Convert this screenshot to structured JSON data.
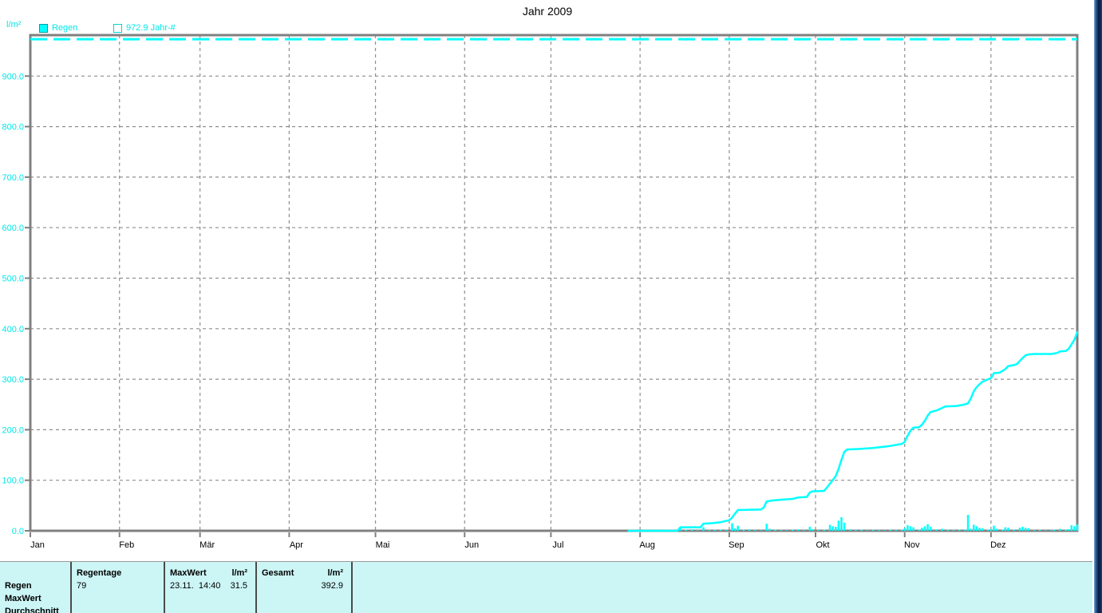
{
  "title": "Jahr 2009",
  "y_axis_unit": "l/m²",
  "legend": {
    "items": [
      {
        "label": "Regen",
        "swatch": "filled"
      },
      {
        "label": "972.9 Jahr-#",
        "swatch": "outline"
      }
    ]
  },
  "chart_data": {
    "type": "line",
    "title": "Jahr 2009",
    "ylabel": "l/m²",
    "ylim": [
      0,
      982
    ],
    "grid": true,
    "legend_position": "top-left",
    "y_ticks": [
      0,
      100,
      200,
      300,
      400,
      500,
      600,
      700,
      800,
      900
    ],
    "y_tick_labels": [
      "0.0",
      "100.0",
      "200.0",
      "300.0",
      "400.0",
      "500.0",
      "600.0",
      "700.0",
      "800.0",
      "900.0"
    ],
    "x_tick_labels": [
      "Jan",
      "Feb",
      "Mär",
      "Apr",
      "Mai",
      "Jun",
      "Jul",
      "Aug",
      "Sep",
      "Okt",
      "Nov",
      "Dez"
    ],
    "month_start_days": [
      1,
      32,
      60,
      91,
      121,
      152,
      182,
      213,
      244,
      274,
      305,
      335
    ],
    "days_in_year": 365,
    "reference_line": {
      "value": 972.9,
      "label": "972.9 Jahr-#",
      "style": "dashed"
    },
    "series": {
      "cumulative_line": {
        "unit": "l/m²",
        "end_value": 392.9,
        "points": [
          [
            209,
            0
          ],
          [
            226,
            0
          ],
          [
            227,
            7
          ],
          [
            234,
            7
          ],
          [
            235,
            14
          ],
          [
            238,
            15
          ],
          [
            241,
            17
          ],
          [
            244,
            21
          ],
          [
            245,
            26
          ],
          [
            246,
            34
          ],
          [
            247,
            41
          ],
          [
            255,
            42
          ],
          [
            256,
            46
          ],
          [
            257,
            58
          ],
          [
            259,
            60
          ],
          [
            263,
            62
          ],
          [
            266,
            63
          ],
          [
            268,
            66
          ],
          [
            271,
            67
          ],
          [
            272,
            76
          ],
          [
            273,
            78
          ],
          [
            277,
            79
          ],
          [
            279,
            93
          ],
          [
            281,
            108
          ],
          [
            282,
            122
          ],
          [
            283,
            140
          ],
          [
            284,
            156
          ],
          [
            285,
            161
          ],
          [
            289,
            162
          ],
          [
            294,
            164
          ],
          [
            300,
            168
          ],
          [
            304,
            172
          ],
          [
            305,
            176
          ],
          [
            306,
            188
          ],
          [
            307,
            198
          ],
          [
            308,
            204
          ],
          [
            310,
            205
          ],
          [
            311,
            210
          ],
          [
            312,
            218
          ],
          [
            313,
            228
          ],
          [
            314,
            235
          ],
          [
            316,
            238
          ],
          [
            318,
            243
          ],
          [
            319,
            246
          ],
          [
            323,
            247
          ],
          [
            325,
            249
          ],
          [
            327,
            252
          ],
          [
            328,
            262
          ],
          [
            329,
            276
          ],
          [
            330,
            284
          ],
          [
            331,
            290
          ],
          [
            332,
            295
          ],
          [
            334,
            300
          ],
          [
            335,
            302
          ],
          [
            336,
            312
          ],
          [
            338,
            313
          ],
          [
            340,
            320
          ],
          [
            341,
            326
          ],
          [
            343,
            328
          ],
          [
            344,
            330
          ],
          [
            345,
            336
          ],
          [
            346,
            342
          ],
          [
            347,
            347
          ],
          [
            348,
            349
          ],
          [
            350,
            350
          ],
          [
            356,
            350
          ],
          [
            357,
            351
          ],
          [
            358,
            352
          ],
          [
            359,
            355
          ],
          [
            361,
            356
          ],
          [
            362,
            360
          ],
          [
            363,
            369
          ],
          [
            364,
            378
          ],
          [
            365,
            392.9
          ]
        ]
      },
      "daily_bars": {
        "unit": "l/m²",
        "max_value": 31.5,
        "points": [
          [
            220,
            1
          ],
          [
            222,
            2
          ],
          [
            225,
            1.5
          ],
          [
            227,
            6
          ],
          [
            229,
            2
          ],
          [
            231,
            3
          ],
          [
            233,
            1
          ],
          [
            235,
            7
          ],
          [
            237,
            1.5
          ],
          [
            239,
            2
          ],
          [
            241,
            2
          ],
          [
            243,
            1.5
          ],
          [
            245,
            15
          ],
          [
            246,
            5
          ],
          [
            247,
            10
          ],
          [
            249,
            2
          ],
          [
            251,
            3
          ],
          [
            253,
            1.5
          ],
          [
            255,
            1
          ],
          [
            257,
            14
          ],
          [
            258,
            4
          ],
          [
            260,
            2
          ],
          [
            262,
            1.5
          ],
          [
            264,
            1
          ],
          [
            266,
            2
          ],
          [
            268,
            3
          ],
          [
            270,
            1
          ],
          [
            272,
            8
          ],
          [
            273,
            3
          ],
          [
            275,
            1.5
          ],
          [
            277,
            2
          ],
          [
            279,
            12
          ],
          [
            280,
            9
          ],
          [
            281,
            8
          ],
          [
            282,
            20
          ],
          [
            283,
            27
          ],
          [
            284,
            16
          ],
          [
            286,
            3
          ],
          [
            288,
            1.5
          ],
          [
            290,
            2
          ],
          [
            292,
            1
          ],
          [
            294,
            2
          ],
          [
            296,
            1.5
          ],
          [
            298,
            1
          ],
          [
            300,
            2
          ],
          [
            302,
            1.5
          ],
          [
            304,
            2
          ],
          [
            305,
            5
          ],
          [
            306,
            11
          ],
          [
            307,
            9
          ],
          [
            308,
            7
          ],
          [
            310,
            2
          ],
          [
            311,
            6
          ],
          [
            312,
            9
          ],
          [
            313,
            13
          ],
          [
            314,
            8
          ],
          [
            316,
            3
          ],
          [
            318,
            4
          ],
          [
            320,
            2
          ],
          [
            322,
            1.5
          ],
          [
            324,
            2
          ],
          [
            326,
            2
          ],
          [
            327,
            31.5
          ],
          [
            328,
            4
          ],
          [
            329,
            12
          ],
          [
            330,
            9
          ],
          [
            331,
            6
          ],
          [
            332,
            5
          ],
          [
            334,
            2
          ],
          [
            335,
            3
          ],
          [
            336,
            10
          ],
          [
            337,
            4
          ],
          [
            339,
            2
          ],
          [
            340,
            7
          ],
          [
            341,
            6
          ],
          [
            343,
            2
          ],
          [
            345,
            6
          ],
          [
            346,
            8
          ],
          [
            347,
            6
          ],
          [
            348,
            5
          ],
          [
            350,
            1.5
          ],
          [
            352,
            2
          ],
          [
            354,
            1
          ],
          [
            356,
            1.5
          ],
          [
            357,
            2
          ],
          [
            359,
            4
          ],
          [
            361,
            2
          ],
          [
            362,
            3
          ],
          [
            363,
            11
          ],
          [
            364,
            9
          ],
          [
            365,
            13
          ]
        ]
      }
    }
  },
  "summary_table": {
    "row_labels": [
      "Regen",
      "MaxWert",
      "Durchschnitt"
    ],
    "cols": [
      {
        "header": "Regentage",
        "unit": "",
        "value_left": "79",
        "value_right": ""
      },
      {
        "header": "MaxWert",
        "unit": "l/m²",
        "value_left": "23.11.  14:40",
        "value_right": "31.5"
      },
      {
        "header": "Gesamt",
        "unit": "l/m²",
        "value_left": "",
        "value_right": "392.9"
      }
    ]
  },
  "colors": {
    "accent": "#00ffff",
    "accent_text": "#00e8e8",
    "grid": "#8f8f8f",
    "axis": "#808080",
    "text": "#000000",
    "table_bg": "#ccf5f5",
    "table_separator": "#4a4a4a",
    "window_edge_dark": "#0b1d3e",
    "window_edge_light": "#2e6cb5"
  }
}
